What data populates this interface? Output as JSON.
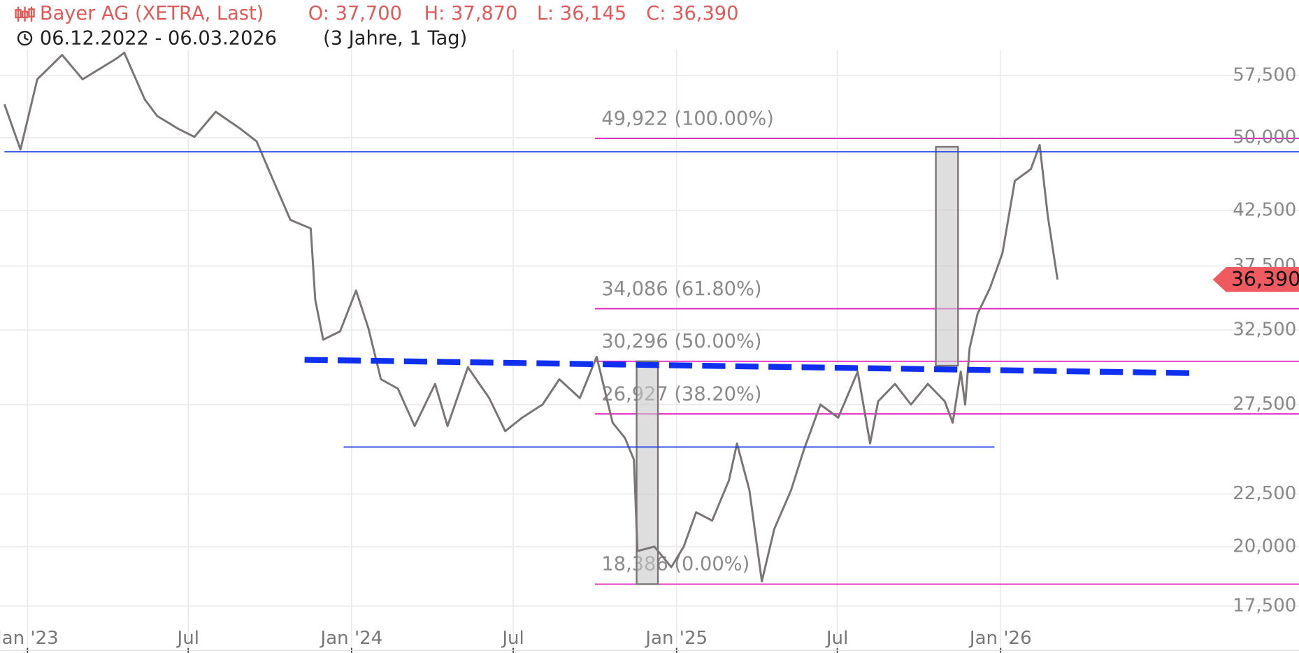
{
  "header": {
    "title": "Bayer AG (XETRA, Last)",
    "ohlc": [
      "O: 37,700",
      "H: 37,870",
      "L: 36,145",
      "C: 36,390"
    ],
    "range": "06.12.2022 - 06.03.2026",
    "period": "(3 Jahre, 1 Tag)"
  },
  "chart_data": {
    "type": "line",
    "log_scale": true,
    "grid": true,
    "xlim": [
      "2022-12-01",
      "2026-12-03"
    ],
    "ylim": [
      16.6,
      60.9
    ],
    "xticks": [
      {
        "value": "2023-01-01",
        "label": "Jan '23"
      },
      {
        "value": "2023-07-01",
        "label": "Jul"
      },
      {
        "value": "2024-01-01",
        "label": "Jan '24"
      },
      {
        "value": "2024-07-01",
        "label": "Jul"
      },
      {
        "value": "2025-01-01",
        "label": "Jan '25"
      },
      {
        "value": "2025-07-01",
        "label": "Jul"
      },
      {
        "value": "2026-01-01",
        "label": "Jan '26"
      }
    ],
    "yticks": [
      {
        "value": 17.5,
        "label": "17,500"
      },
      {
        "value": 20,
        "label": "20,000"
      },
      {
        "value": 22.5,
        "label": "22,500"
      },
      {
        "value": 27.5,
        "label": "27,500"
      },
      {
        "value": 32.5,
        "label": "32,500"
      },
      {
        "value": 37.5,
        "label": "37,500"
      },
      {
        "value": 42.5,
        "label": "42,500"
      },
      {
        "value": 50,
        "label": "50,000"
      },
      {
        "value": 57.5,
        "label": "57,500"
      }
    ],
    "series": [
      {
        "color": "#7a7474",
        "x": [
          "2022-12-06",
          "2022-12-24",
          "2023-01-12",
          "2023-02-09",
          "2023-03-04",
          "2023-04-11",
          "2023-04-20",
          "2023-05-13",
          "2023-05-27",
          "2023-06-20",
          "2023-07-08",
          "2023-08-01",
          "2023-08-29",
          "2023-09-16",
          "2023-10-05",
          "2023-10-24",
          "2023-11-16",
          "2023-11-21",
          "2023-11-30",
          "2023-12-19",
          "2024-01-06",
          "2024-01-20",
          "2024-02-03",
          "2024-02-22",
          "2024-03-12",
          "2024-04-04",
          "2024-04-18",
          "2024-05-11",
          "2024-06-04",
          "2024-06-22",
          "2024-07-11",
          "2024-08-03",
          "2024-08-22",
          "2024-09-14",
          "2024-10-03",
          "2024-10-21",
          "2024-11-04",
          "2024-11-14",
          "2024-11-18",
          "2024-12-07",
          "2024-12-26",
          "2025-01-09",
          "2025-01-23",
          "2025-02-10",
          "2025-03-01",
          "2025-03-10",
          "2025-03-24",
          "2025-04-07",
          "2025-04-21",
          "2025-05-10",
          "2025-05-24",
          "2025-06-12",
          "2025-07-02",
          "2025-07-24",
          "2025-08-07",
          "2025-08-16",
          "2025-09-04",
          "2025-09-22",
          "2025-10-11",
          "2025-10-30",
          "2025-11-08",
          "2025-11-17",
          "2025-11-22",
          "2025-11-27",
          "2025-12-06",
          "2025-12-20",
          "2026-01-03",
          "2026-01-17",
          "2026-02-04",
          "2026-02-14",
          "2026-02-23",
          "2026-03-06"
        ],
        "values": [
          53.9,
          48.7,
          57.0,
          60.2,
          57.0,
          59.7,
          60.5,
          54.5,
          52.5,
          51.0,
          50.1,
          53.0,
          51.0,
          49.6,
          45.4,
          41.6,
          40.8,
          34.8,
          31.8,
          32.4,
          35.5,
          32.6,
          29.1,
          28.5,
          26.2,
          28.8,
          26.2,
          29.9,
          27.9,
          25.9,
          26.7,
          27.5,
          29.1,
          27.9,
          30.6,
          26.4,
          25.5,
          24.3,
          19.8,
          20.0,
          19.1,
          20.0,
          21.6,
          21.2,
          23.2,
          25.2,
          22.7,
          18.5,
          20.8,
          22.7,
          24.8,
          27.5,
          26.7,
          29.6,
          25.2,
          27.7,
          28.8,
          27.5,
          28.8,
          27.7,
          26.4,
          29.6,
          27.5,
          31.2,
          33.7,
          35.7,
          38.6,
          45.4,
          46.6,
          49.2,
          42.0,
          36.39
        ]
      }
    ],
    "last_label": {
      "value": 36.39,
      "label": "36,390"
    },
    "fib_color": "#e020c0",
    "fib_start": "2024-10-01",
    "fib_levels": [
      {
        "value": 49.922,
        "label": "49,922 (100.00%)"
      },
      {
        "value": 34.086,
        "label": "34,086 (61.80%)"
      },
      {
        "value": 30.296,
        "label": "30,296 (50.00%)"
      },
      {
        "value": 26.927,
        "label": "26,927 (38.20%)"
      },
      {
        "value": 18.386,
        "label": "18,386 (0.00%)"
      }
    ],
    "lines": [
      {
        "x": [
          "2022-12-06",
          "2026-12-03"
        ],
        "y": [
          48.45,
          48.45
        ],
        "color": "#1a3ce0",
        "dashed": false
      },
      {
        "x": [
          "2023-12-23",
          "2025-12-25"
        ],
        "y": [
          25.0,
          25.0
        ],
        "color": "#1a3ce0",
        "dashed": false
      },
      {
        "x": [
          "2023-11-09",
          "2026-08-10"
        ],
        "y": [
          30.4,
          29.5
        ],
        "color": "#1030f0",
        "dashed": true
      }
    ],
    "boxes": [
      {
        "x": [
          "2024-11-17",
          "2024-12-11"
        ],
        "y": [
          18.386,
          30.296
        ]
      },
      {
        "x": [
          "2025-10-20",
          "2025-11-14"
        ],
        "y": [
          30.0,
          49.0
        ]
      }
    ]
  }
}
